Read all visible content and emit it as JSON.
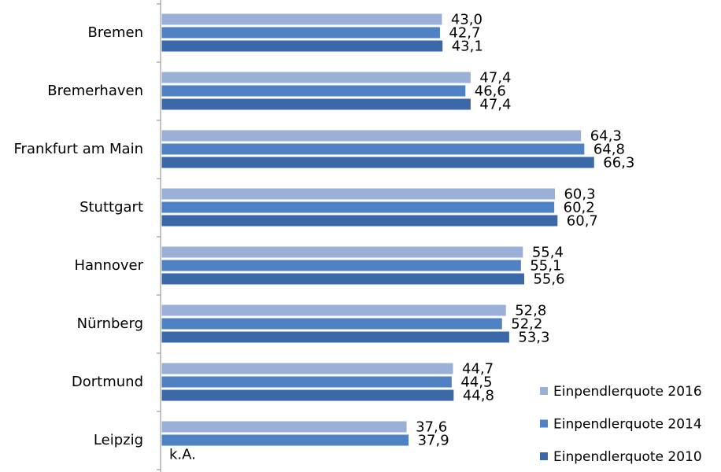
{
  "chart_data": {
    "type": "bar",
    "orientation": "horizontal",
    "categories": [
      "Bremen",
      "Bremerhaven",
      "Frankfurt am Main",
      "Stuttgart",
      "Hannover",
      "Nürnberg",
      "Dortmund",
      "Leipzig"
    ],
    "series": [
      {
        "name": "Einpendlerquote 2016",
        "color": "#9bb0d7",
        "values": [
          43.0,
          47.4,
          64.3,
          60.3,
          55.4,
          52.8,
          44.7,
          37.6
        ],
        "value_labels": [
          "43,0",
          "47,4",
          "64,3",
          "60,3",
          "55,4",
          "52,8",
          "44,7",
          "37,6"
        ]
      },
      {
        "name": "Einpendlerquote 2014",
        "color": "#4f81c5",
        "values": [
          42.7,
          46.6,
          64.8,
          60.2,
          55.1,
          52.2,
          44.5,
          37.9
        ],
        "value_labels": [
          "42,7",
          "46,6",
          "64,8",
          "60,2",
          "55,1",
          "52,2",
          "44,5",
          "37,9"
        ]
      },
      {
        "name": "Einpendlerquote 2010",
        "color": "#3a68a8",
        "values": [
          43.1,
          47.4,
          66.3,
          60.7,
          55.6,
          53.3,
          44.8,
          null
        ],
        "value_labels": [
          "43,1",
          "47,4",
          "66,3",
          "60,7",
          "55,6",
          "53,3",
          "44,8",
          "k.A."
        ]
      }
    ],
    "legend": "bottom-right"
  }
}
